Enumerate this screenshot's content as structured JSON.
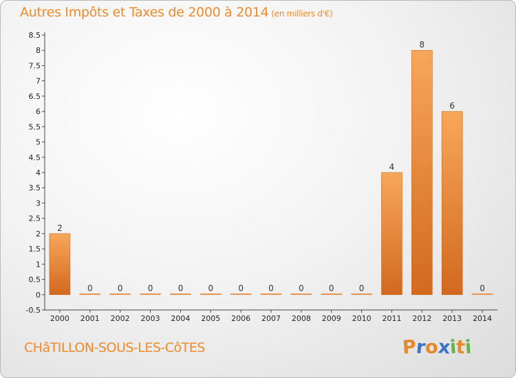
{
  "header": {
    "title": "Autres Impôts et Taxes de 2000 à 2014",
    "unit": "(en milliers d'€)"
  },
  "footer": {
    "commune": "CHâTILLON-SOUS-LES-CôTES",
    "logo": "Proxiti"
  },
  "colors": {
    "accent": "#ee8a2a",
    "bar_top": "#f7a75a",
    "bar_bottom": "#d2691e",
    "logo_letters": [
      "#e58a2a",
      "#3a74c4",
      "#e58a2a",
      "#3a74c4",
      "#6ab04c",
      "#e58a2a",
      "#6ab04c"
    ]
  },
  "chart_data": {
    "type": "bar",
    "categories": [
      "2000",
      "2001",
      "2002",
      "2003",
      "2004",
      "2005",
      "2006",
      "2007",
      "2008",
      "2009",
      "2010",
      "2011",
      "2012",
      "2013",
      "2014"
    ],
    "values": [
      2,
      0,
      0,
      0,
      0,
      0,
      0,
      0,
      0,
      0,
      0,
      4,
      8,
      6,
      0
    ],
    "title": "Autres Impôts et Taxes de 2000 à 2014",
    "subtitle": "(en milliers d'€)",
    "xlabel": "",
    "ylabel": "",
    "ylim": [
      -0.5,
      8.5
    ],
    "yticks": [
      "-0.5",
      "0",
      "0.5",
      "1",
      "1.5",
      "2",
      "2.5",
      "3",
      "3.5",
      "4",
      "4.5",
      "5",
      "5.5",
      "6",
      "6.5",
      "7",
      "7.5",
      "8",
      "8.5"
    ],
    "grid": false,
    "legend": "none"
  }
}
